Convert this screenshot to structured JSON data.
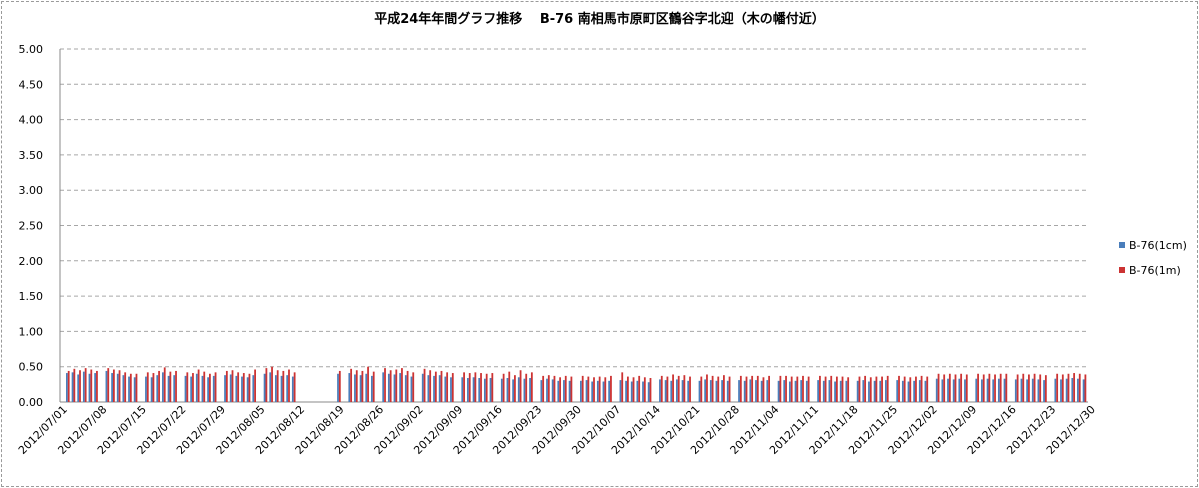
{
  "chart_data": {
    "type": "bar",
    "title": "平成24年年間グラフ推移　 B-76 南相馬市原町区鶴谷字北迎（木の幡付近）",
    "xlabel": "",
    "ylabel": "",
    "ylim": [
      0,
      5
    ],
    "yticks": [
      "0.00",
      "0.50",
      "1.00",
      "1.50",
      "2.00",
      "2.50",
      "3.00",
      "3.50",
      "4.00",
      "4.50",
      "5.00"
    ],
    "grid": true,
    "legend_position": "right",
    "start_date": "2012-07-01",
    "xticks": [
      "2012/07/01",
      "2012/07/08",
      "2012/07/15",
      "2012/07/22",
      "2012/07/29",
      "2012/08/05",
      "2012/08/12",
      "2012/08/19",
      "2012/08/26",
      "2012/09/02",
      "2012/09/09",
      "2012/09/16",
      "2012/09/23",
      "2012/09/30",
      "2012/10/07",
      "2012/10/14",
      "2012/10/21",
      "2012/10/28",
      "2012/11/04",
      "2012/11/11",
      "2012/11/18",
      "2012/11/25",
      "2012/12/02",
      "2012/12/09",
      "2012/12/16",
      "2012/12/23",
      "2012/12/30"
    ],
    "colors": {
      "s1": "#4a7ebb",
      "s2": "#cc3333"
    },
    "series": [
      {
        "name": "B-76(1cm)",
        "values": [
          0.41,
          0.42,
          0.39,
          0.43,
          0.4,
          0.41,
          null,
          0.44,
          0.41,
          0.4,
          0.38,
          0.36,
          0.35,
          null,
          0.36,
          0.35,
          0.38,
          0.42,
          0.37,
          0.38,
          null,
          0.37,
          0.36,
          0.4,
          0.37,
          0.35,
          0.37,
          null,
          0.38,
          0.39,
          0.37,
          0.36,
          0.35,
          0.38,
          null,
          0.4,
          0.42,
          0.38,
          0.37,
          0.38,
          0.36,
          null,
          null,
          null,
          null,
          null,
          null,
          null,
          0.4,
          null,
          0.41,
          0.39,
          0.38,
          0.4,
          0.37,
          null,
          0.42,
          0.4,
          0.39,
          0.41,
          0.38,
          0.36,
          null,
          0.4,
          0.38,
          0.37,
          0.38,
          0.36,
          0.35,
          null,
          0.35,
          0.34,
          0.35,
          0.34,
          0.33,
          0.34,
          null,
          0.33,
          0.34,
          0.32,
          0.35,
          0.33,
          0.34,
          null,
          0.31,
          0.33,
          0.32,
          0.3,
          0.31,
          0.3,
          null,
          0.3,
          0.31,
          0.29,
          0.3,
          0.29,
          0.3,
          null,
          0.31,
          0.3,
          0.29,
          0.3,
          0.29,
          0.28,
          null,
          0.32,
          0.31,
          0.3,
          0.32,
          0.31,
          0.3,
          null,
          0.3,
          0.32,
          0.31,
          0.3,
          0.31,
          0.3,
          null,
          0.31,
          0.3,
          0.32,
          0.31,
          0.3,
          0.31,
          null,
          0.3,
          0.31,
          0.29,
          0.3,
          0.31,
          0.3,
          null,
          0.31,
          0.3,
          0.31,
          0.29,
          0.3,
          0.3,
          null,
          0.3,
          0.31,
          0.29,
          0.3,
          0.3,
          0.31,
          null,
          0.31,
          0.3,
          0.29,
          0.3,
          0.31,
          0.3,
          null,
          0.33,
          0.32,
          0.33,
          0.32,
          0.33,
          0.32,
          null,
          0.33,
          0.32,
          0.33,
          0.32,
          0.33,
          0.33,
          null,
          0.32,
          0.33,
          0.32,
          0.33,
          0.32,
          0.31,
          null,
          0.33,
          0.32,
          0.33,
          0.34,
          0.33,
          0.32,
          null
        ]
      },
      {
        "name": "B-76(1m)",
        "values": [
          0.44,
          0.47,
          0.45,
          0.48,
          0.46,
          0.44,
          null,
          0.48,
          0.46,
          0.45,
          0.42,
          0.4,
          0.4,
          null,
          0.42,
          0.41,
          0.44,
          0.49,
          0.43,
          0.44,
          null,
          0.42,
          0.41,
          0.46,
          0.43,
          0.4,
          0.42,
          null,
          0.44,
          0.45,
          0.42,
          0.41,
          0.4,
          0.46,
          null,
          0.48,
          0.5,
          0.45,
          0.44,
          0.46,
          0.42,
          null,
          null,
          null,
          null,
          null,
          null,
          null,
          0.44,
          null,
          0.47,
          0.45,
          0.44,
          0.5,
          0.43,
          null,
          0.48,
          0.45,
          0.46,
          0.48,
          0.44,
          0.42,
          null,
          0.47,
          0.45,
          0.43,
          0.44,
          0.42,
          0.41,
          null,
          0.42,
          0.41,
          0.42,
          0.41,
          0.4,
          0.41,
          null,
          0.4,
          0.43,
          0.38,
          0.45,
          0.4,
          0.42,
          null,
          0.37,
          0.38,
          0.37,
          0.35,
          0.37,
          0.36,
          null,
          0.37,
          0.36,
          0.35,
          0.36,
          0.35,
          0.37,
          null,
          0.42,
          0.36,
          0.35,
          0.37,
          0.35,
          0.34,
          null,
          0.37,
          0.36,
          0.39,
          0.37,
          0.38,
          0.36,
          null,
          0.36,
          0.39,
          0.37,
          0.36,
          0.38,
          0.36,
          null,
          0.37,
          0.36,
          0.37,
          0.37,
          0.35,
          0.37,
          null,
          0.37,
          0.37,
          0.36,
          0.36,
          0.37,
          0.36,
          null,
          0.37,
          0.36,
          0.37,
          0.36,
          0.36,
          0.35,
          null,
          0.36,
          0.37,
          0.35,
          0.36,
          0.36,
          0.37,
          null,
          0.37,
          0.36,
          0.35,
          0.36,
          0.37,
          0.36,
          null,
          0.4,
          0.39,
          0.4,
          0.39,
          0.4,
          0.39,
          null,
          0.4,
          0.39,
          0.4,
          0.39,
          0.4,
          0.4,
          null,
          0.39,
          0.4,
          0.39,
          0.4,
          0.39,
          0.38,
          null,
          0.4,
          0.39,
          0.4,
          0.41,
          0.4,
          0.39,
          null
        ]
      }
    ]
  }
}
